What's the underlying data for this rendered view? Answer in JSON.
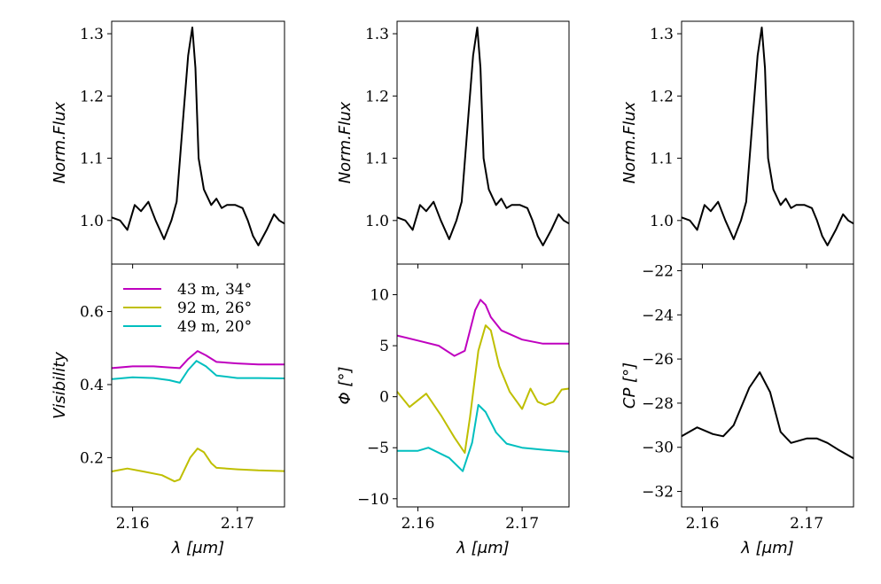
{
  "chart_data": [
    {
      "type": "line",
      "panel": "flux-1",
      "ylabel": "Norm.Flux",
      "xlabel": "",
      "xlim": [
        2.158,
        2.1745
      ],
      "ylim": [
        0.93,
        1.32
      ],
      "yticks": [
        1.0,
        1.1,
        1.2,
        1.3
      ],
      "ytick_labels": [
        "1.0",
        "1.1",
        "1.2",
        "1.3"
      ],
      "series": [
        {
          "color": "#000000",
          "x": [
            2.158,
            2.1588,
            2.1595,
            2.1602,
            2.1608,
            2.1615,
            2.1622,
            2.163,
            2.1637,
            2.1642,
            2.1648,
            2.1653,
            2.1657,
            2.166,
            2.1663,
            2.1668,
            2.1675,
            2.168,
            2.1685,
            2.169,
            2.1698,
            2.1705,
            2.171,
            2.1715,
            2.172,
            2.1728,
            2.1735,
            2.174,
            2.1745
          ],
          "y": [
            1.005,
            1.0,
            0.985,
            1.025,
            1.015,
            1.03,
            1.0,
            0.97,
            1.0,
            1.03,
            1.16,
            1.265,
            1.31,
            1.245,
            1.1,
            1.05,
            1.025,
            1.035,
            1.02,
            1.025,
            1.025,
            1.02,
            1.0,
            0.975,
            0.96,
            0.985,
            1.01,
            1.0,
            0.995
          ]
        }
      ]
    },
    {
      "type": "line",
      "panel": "visibility",
      "ylabel": "Visibility",
      "xlabel": "λ [μm]",
      "xlim": [
        2.158,
        2.1745
      ],
      "ylim": [
        0.065,
        0.73
      ],
      "yticks": [
        0.2,
        0.4,
        0.6
      ],
      "ytick_labels": [
        "0.2",
        "0.4",
        "0.6"
      ],
      "xticks": [
        2.16,
        2.17
      ],
      "xtick_labels": [
        "2.16",
        "2.17"
      ],
      "legend": "upper-left",
      "series": [
        {
          "name": "43 m, 34°",
          "color": "#bf00bf",
          "x": [
            2.158,
            2.16,
            2.162,
            2.1635,
            2.1645,
            2.1653,
            2.1662,
            2.167,
            2.168,
            2.17,
            2.172,
            2.1745
          ],
          "y": [
            0.445,
            0.45,
            0.45,
            0.447,
            0.445,
            0.47,
            0.492,
            0.48,
            0.462,
            0.458,
            0.455,
            0.455
          ]
        },
        {
          "name": "92 m, 26°",
          "color": "#bfbf00",
          "x": [
            2.158,
            2.1595,
            2.161,
            2.1628,
            2.164,
            2.1645,
            2.1655,
            2.1662,
            2.1668,
            2.1675,
            2.168,
            2.17,
            2.172,
            2.1745
          ],
          "y": [
            0.162,
            0.17,
            0.162,
            0.152,
            0.135,
            0.14,
            0.2,
            0.225,
            0.215,
            0.185,
            0.172,
            0.168,
            0.165,
            0.163
          ]
        },
        {
          "name": "49 m, 20°",
          "color": "#00bfbf",
          "x": [
            2.158,
            2.16,
            2.162,
            2.1635,
            2.1645,
            2.1653,
            2.1661,
            2.167,
            2.168,
            2.17,
            2.172,
            2.1745
          ],
          "y": [
            0.415,
            0.42,
            0.418,
            0.412,
            0.405,
            0.44,
            0.465,
            0.45,
            0.425,
            0.418,
            0.418,
            0.417
          ]
        }
      ]
    },
    {
      "type": "line",
      "panel": "flux-2",
      "ylabel": "Norm.Flux",
      "xlabel": "",
      "xlim": [
        2.158,
        2.1745
      ],
      "ylim": [
        0.93,
        1.32
      ],
      "yticks": [
        1.0,
        1.1,
        1.2,
        1.3
      ],
      "ytick_labels": [
        "1.0",
        "1.1",
        "1.2",
        "1.3"
      ],
      "series": [
        {
          "color": "#000000",
          "x": [
            2.158,
            2.1588,
            2.1595,
            2.1602,
            2.1608,
            2.1615,
            2.1622,
            2.163,
            2.1637,
            2.1642,
            2.1648,
            2.1653,
            2.1657,
            2.166,
            2.1663,
            2.1668,
            2.1675,
            2.168,
            2.1685,
            2.169,
            2.1698,
            2.1705,
            2.171,
            2.1715,
            2.172,
            2.1728,
            2.1735,
            2.174,
            2.1745
          ],
          "y": [
            1.005,
            1.0,
            0.985,
            1.025,
            1.015,
            1.03,
            1.0,
            0.97,
            1.0,
            1.03,
            1.16,
            1.265,
            1.31,
            1.245,
            1.1,
            1.05,
            1.025,
            1.035,
            1.02,
            1.025,
            1.025,
            1.02,
            1.0,
            0.975,
            0.96,
            0.985,
            1.01,
            1.0,
            0.995
          ]
        }
      ]
    },
    {
      "type": "line",
      "panel": "phase",
      "ylabel": "Φ [°]",
      "xlabel": "λ [μm]",
      "xlim": [
        2.158,
        2.1745
      ],
      "ylim": [
        -10.8,
        13
      ],
      "yticks": [
        -10,
        -5,
        0,
        5,
        10
      ],
      "ytick_labels": [
        "−10",
        "−5",
        "0",
        "5",
        "10"
      ],
      "xticks": [
        2.16,
        2.17
      ],
      "xtick_labels": [
        "2.16",
        "2.17"
      ],
      "series": [
        {
          "name": "43 m, 34°",
          "color": "#bf00bf",
          "x": [
            2.158,
            2.16,
            2.162,
            2.1635,
            2.1645,
            2.1655,
            2.166,
            2.1665,
            2.167,
            2.168,
            2.17,
            2.172,
            2.1745
          ],
          "y": [
            6,
            5.5,
            5,
            4,
            4.5,
            8.5,
            9.5,
            9,
            7.8,
            6.5,
            5.6,
            5.2,
            5.2
          ]
        },
        {
          "name": "92 m, 26°",
          "color": "#bfbf00",
          "x": [
            2.158,
            2.1592,
            2.1608,
            2.1622,
            2.1635,
            2.1645,
            2.165,
            2.1658,
            2.1665,
            2.167,
            2.1678,
            2.1688,
            2.17,
            2.1708,
            2.1715,
            2.1722,
            2.173,
            2.1738,
            2.1745
          ],
          "y": [
            0.5,
            -1,
            0.3,
            -1.8,
            -4,
            -5.5,
            -2,
            4.5,
            7,
            6.5,
            3,
            0.5,
            -1.2,
            0.8,
            -0.5,
            -0.8,
            -0.5,
            0.7,
            0.8
          ]
        },
        {
          "name": "49 m, 20°",
          "color": "#00bfbf",
          "x": [
            2.158,
            2.16,
            2.161,
            2.163,
            2.1643,
            2.1652,
            2.1658,
            2.1665,
            2.1675,
            2.1685,
            2.17,
            2.172,
            2.1745
          ],
          "y": [
            -5.3,
            -5.3,
            -5,
            -6,
            -7.3,
            -4.5,
            -0.8,
            -1.5,
            -3.5,
            -4.6,
            -5,
            -5.2,
            -5.4
          ]
        }
      ]
    },
    {
      "type": "line",
      "panel": "flux-3",
      "ylabel": "Norm.Flux",
      "xlabel": "",
      "xlim": [
        2.158,
        2.1745
      ],
      "ylim": [
        0.93,
        1.32
      ],
      "yticks": [
        1.0,
        1.1,
        1.2,
        1.3
      ],
      "ytick_labels": [
        "1.0",
        "1.1",
        "1.2",
        "1.3"
      ],
      "series": [
        {
          "color": "#000000",
          "x": [
            2.158,
            2.1588,
            2.1595,
            2.1602,
            2.1608,
            2.1615,
            2.1622,
            2.163,
            2.1637,
            2.1642,
            2.1648,
            2.1653,
            2.1657,
            2.166,
            2.1663,
            2.1668,
            2.1675,
            2.168,
            2.1685,
            2.169,
            2.1698,
            2.1705,
            2.171,
            2.1715,
            2.172,
            2.1728,
            2.1735,
            2.174,
            2.1745
          ],
          "y": [
            1.005,
            1.0,
            0.985,
            1.025,
            1.015,
            1.03,
            1.0,
            0.97,
            1.0,
            1.03,
            1.16,
            1.265,
            1.31,
            1.245,
            1.1,
            1.05,
            1.025,
            1.035,
            1.02,
            1.025,
            1.025,
            1.02,
            1.0,
            0.975,
            0.96,
            0.985,
            1.01,
            1.0,
            0.995
          ]
        }
      ]
    },
    {
      "type": "line",
      "panel": "closure-phase",
      "ylabel": "CP [°]",
      "xlabel": "λ [μm]",
      "xlim": [
        2.158,
        2.1745
      ],
      "ylim": [
        -32.7,
        -21.7
      ],
      "yticks": [
        -32,
        -30,
        -28,
        -26,
        -24,
        -22
      ],
      "ytick_labels": [
        "−32",
        "−30",
        "−28",
        "−26",
        "−24",
        "−22"
      ],
      "xticks": [
        2.16,
        2.17
      ],
      "xtick_labels": [
        "2.16",
        "2.17"
      ],
      "series": [
        {
          "color": "#000000",
          "x": [
            2.158,
            2.1595,
            2.161,
            2.162,
            2.163,
            2.1645,
            2.1655,
            2.1665,
            2.1675,
            2.1685,
            2.17,
            2.171,
            2.172,
            2.173,
            2.1745
          ],
          "y": [
            -29.5,
            -29.1,
            -29.4,
            -29.5,
            -29,
            -27.3,
            -26.6,
            -27.5,
            -29.3,
            -29.8,
            -29.6,
            -29.6,
            -29.8,
            -30.1,
            -30.5
          ]
        }
      ]
    }
  ]
}
